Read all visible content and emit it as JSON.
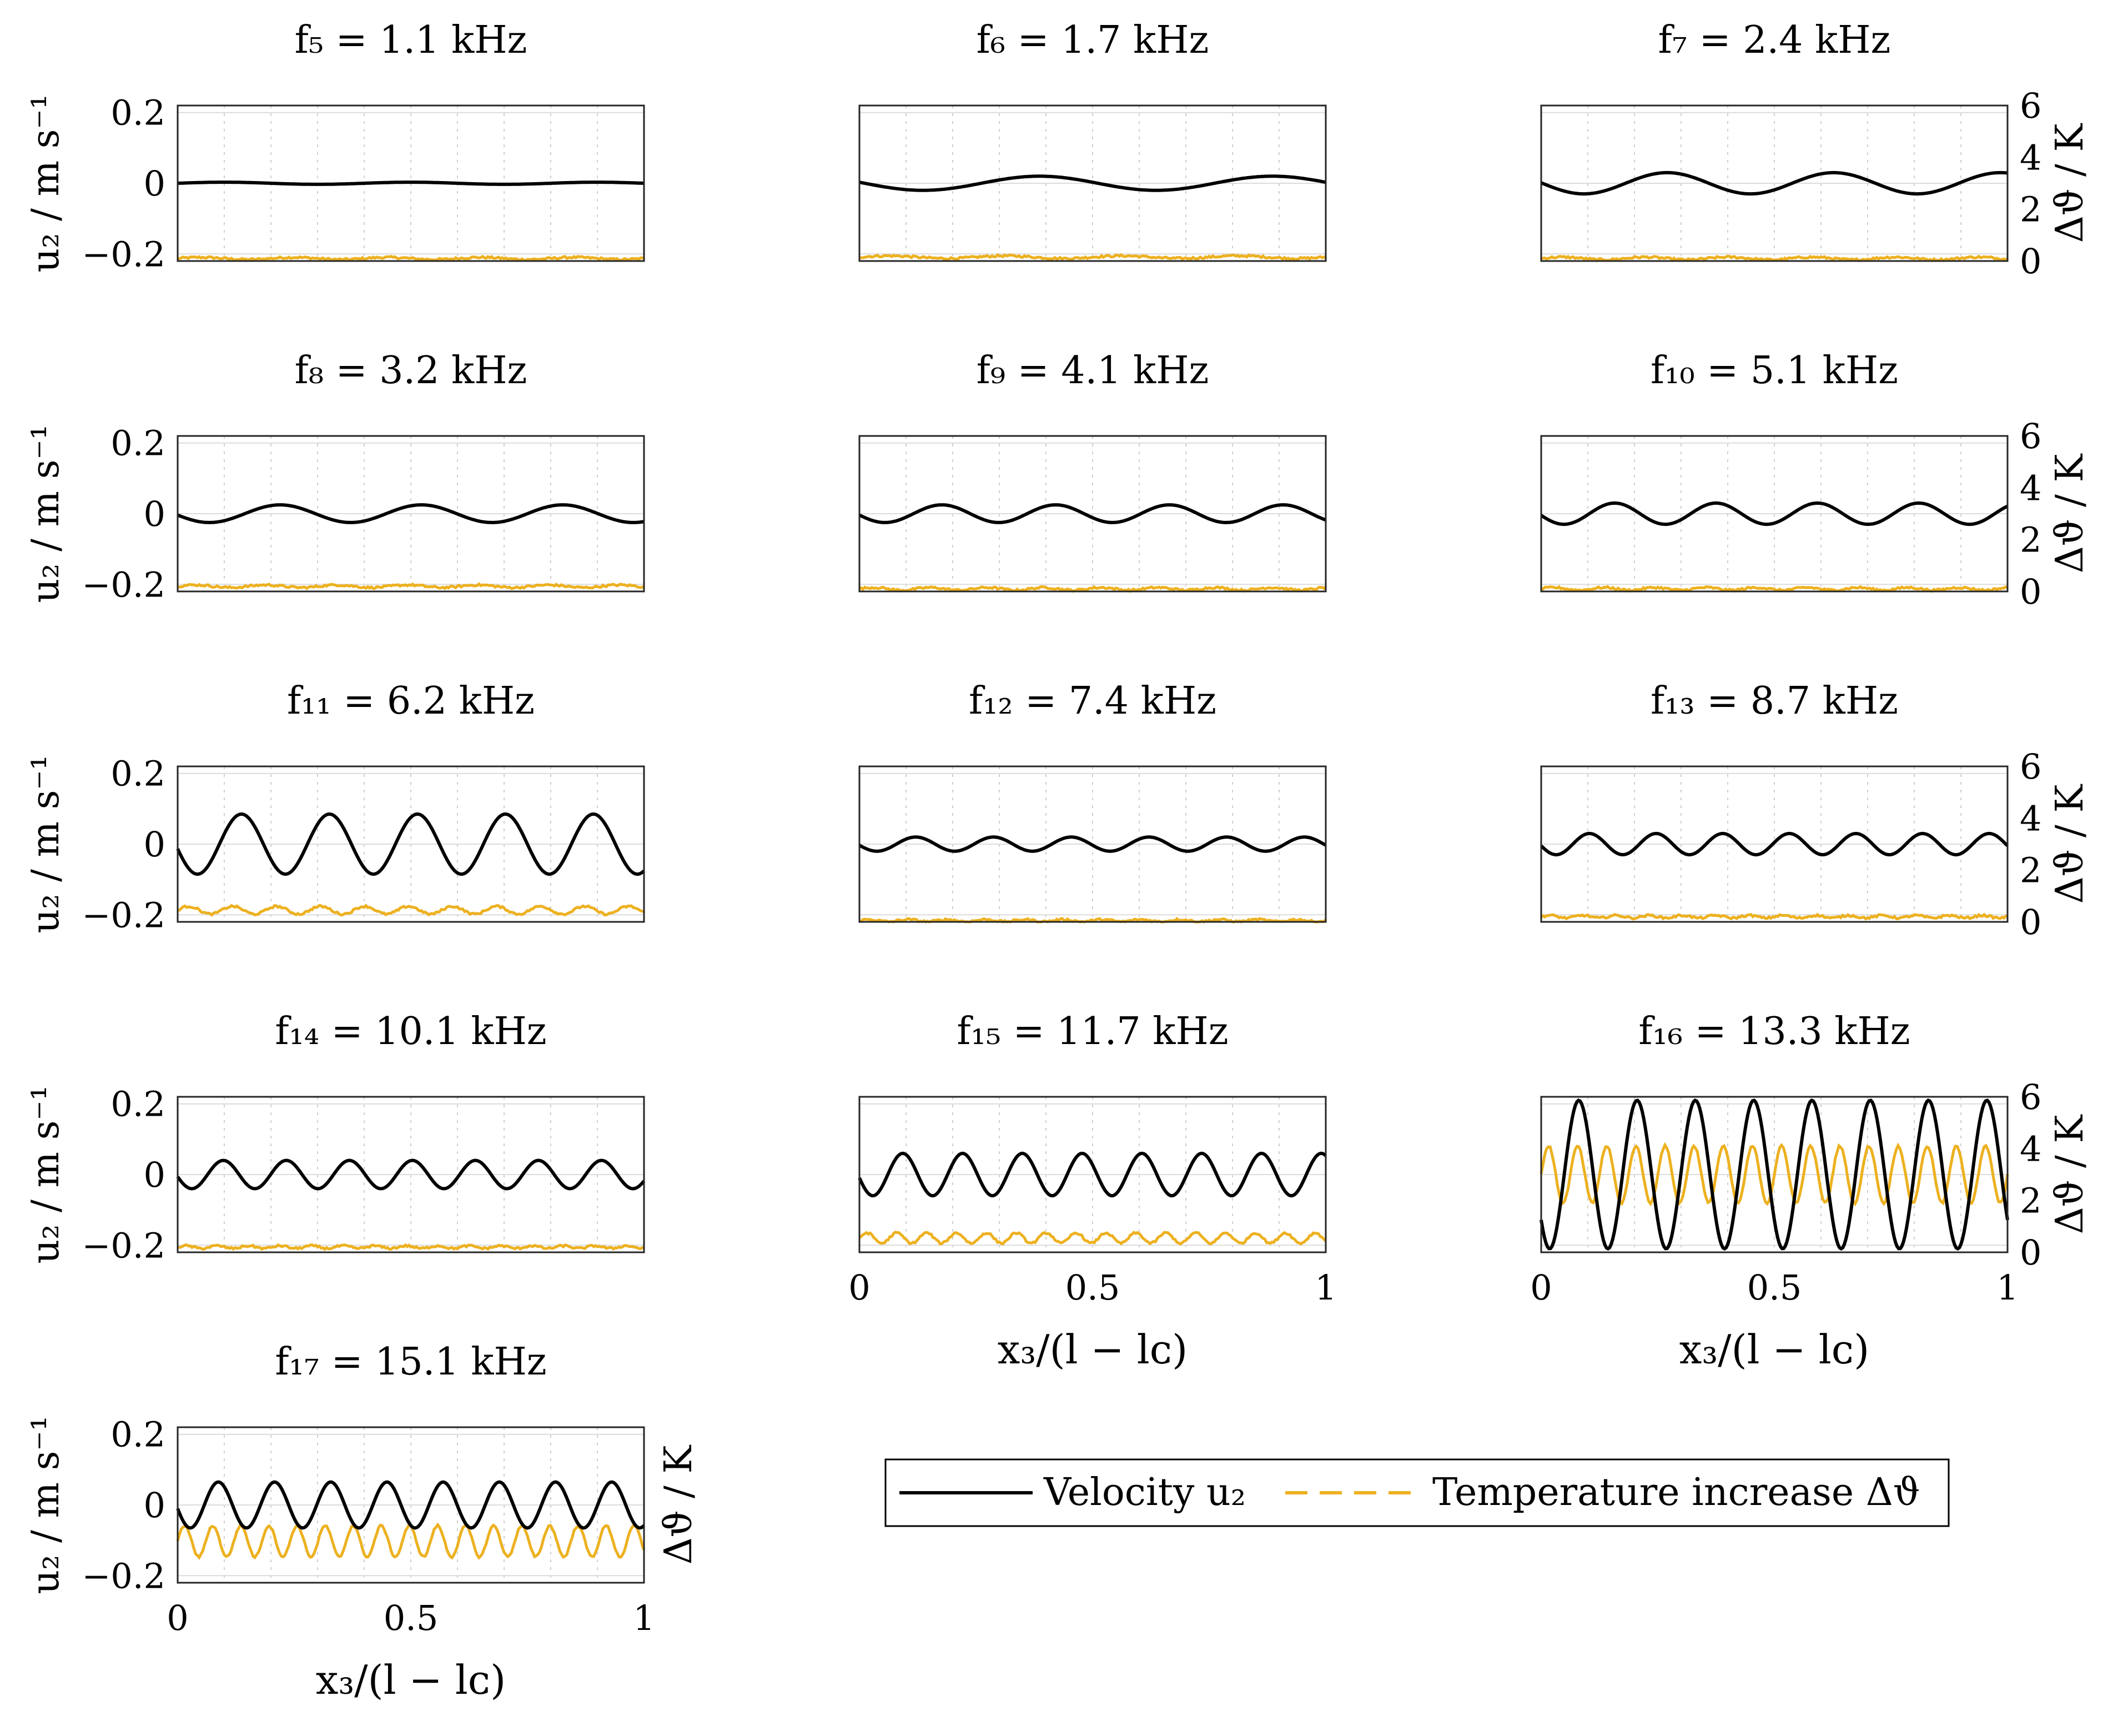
{
  "chart_data": {
    "type": "line",
    "legend": {
      "placement": "bottom-right",
      "entries": [
        {
          "label": "Velocity u₂",
          "color": "#000000",
          "style": "solid"
        },
        {
          "label": "Temperature increase Δϑ",
          "color": "#EDB120",
          "style": "dashed"
        }
      ]
    },
    "left_axis": {
      "label": "u₂ / m s⁻¹",
      "ylim": [
        -0.22,
        0.22
      ],
      "ticks": [
        "0.2",
        "0",
        "−0.2"
      ],
      "tick_values": [
        0.2,
        0,
        -0.2
      ]
    },
    "right_axis": {
      "label": "Δϑ / K",
      "ylim": [
        0,
        6
      ],
      "ticks": [
        "6",
        "4",
        "2",
        "0"
      ],
      "tick_values": [
        6,
        4,
        2,
        0
      ]
    },
    "x_axis": {
      "label": "x₃/(l − lᴄ)",
      "xlim": [
        0,
        1
      ],
      "ticks": [
        "0",
        "0.5",
        "1"
      ],
      "tick_values": [
        0,
        0.5,
        1
      ]
    },
    "grid": true,
    "panels": [
      {
        "title": "f₅ = 1.1 kHz",
        "velocity_amplitude": 0.003,
        "velocity_periods": 2.5,
        "velocity_phase": 0.0,
        "temperature_mean": 0.1,
        "temperature_ripple": 0.04
      },
      {
        "title": "f₆ = 1.7 kHz",
        "velocity_amplitude": 0.02,
        "velocity_periods": 2.0,
        "velocity_phase": 3.0,
        "temperature_mean": 0.15,
        "temperature_ripple": 0.05
      },
      {
        "title": "f₇ = 2.4 kHz",
        "velocity_amplitude": 0.03,
        "velocity_periods": 2.8,
        "velocity_phase": 3.1,
        "temperature_mean": 0.1,
        "temperature_ripple": 0.05
      },
      {
        "title": "f₈ = 3.2 kHz",
        "velocity_amplitude": 0.025,
        "velocity_periods": 3.3,
        "velocity_phase": 3.3,
        "temperature_mean": 0.2,
        "temperature_ripple": 0.05
      },
      {
        "title": "f₉ = 4.1 kHz",
        "velocity_amplitude": 0.025,
        "velocity_periods": 4.1,
        "velocity_phase": 3.3,
        "temperature_mean": 0.1,
        "temperature_ripple": 0.05
      },
      {
        "title": "f₁₀ = 5.1 kHz",
        "velocity_amplitude": 0.03,
        "velocity_periods": 4.6,
        "velocity_phase": 3.3,
        "temperature_mean": 0.1,
        "temperature_ripple": 0.05
      },
      {
        "title": "f₁₁ = 6.2 kHz",
        "velocity_amplitude": 0.085,
        "velocity_periods": 5.3,
        "velocity_phase": 3.3,
        "temperature_mean": 0.45,
        "temperature_ripple": 0.15
      },
      {
        "title": "f₁₂ = 7.4 kHz",
        "velocity_amplitude": 0.02,
        "velocity_periods": 6.0,
        "velocity_phase": 3.3,
        "temperature_mean": 0.05,
        "temperature_ripple": 0.04
      },
      {
        "title": "f₁₃ = 8.7 kHz",
        "velocity_amplitude": 0.03,
        "velocity_periods": 7.0,
        "velocity_phase": 3.3,
        "temperature_mean": 0.2,
        "temperature_ripple": 0.05
      },
      {
        "title": "f₁₄ = 10.1 kHz",
        "velocity_amplitude": 0.04,
        "velocity_periods": 7.4,
        "velocity_phase": 3.3,
        "temperature_mean": 0.2,
        "temperature_ripple": 0.05
      },
      {
        "title": "f₁₅ = 11.7 kHz",
        "velocity_amplitude": 0.06,
        "velocity_periods": 7.8,
        "velocity_phase": 3.3,
        "temperature_mean": 0.55,
        "temperature_ripple": 0.2
      },
      {
        "title": "f₁₆ = 13.3 kHz",
        "velocity_amplitude": 0.21,
        "velocity_periods": 8.0,
        "velocity_phase": 3.8,
        "temperature_mean": 3.0,
        "temperature_ripple": 1.1
      },
      {
        "title": "f₁₇ = 15.1 kHz",
        "velocity_amplitude": 0.065,
        "velocity_periods": 8.3,
        "velocity_phase": 3.3,
        "temperature_mean": 1.6,
        "temperature_ripple": 0.6
      }
    ]
  }
}
